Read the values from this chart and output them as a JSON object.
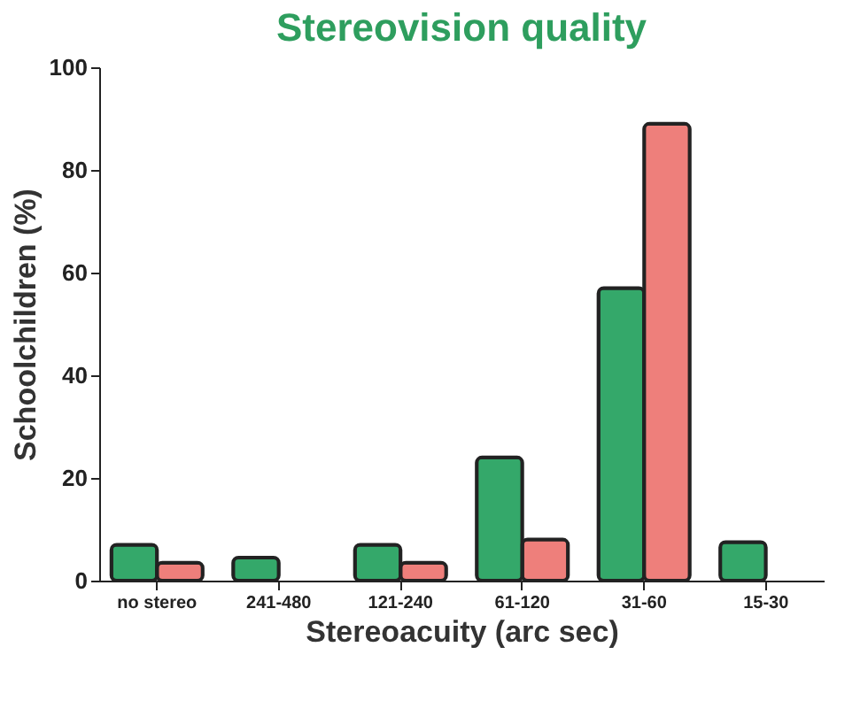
{
  "chart_data": {
    "type": "bar",
    "title": "Stereovision quality",
    "xlabel": "Stereoacuity (arc sec)",
    "ylabel": "Schoolchildren (%)",
    "categories": [
      "no stereo",
      "241-480",
      "121-240",
      "61-120",
      "31-60",
      "15-30"
    ],
    "series": [
      {
        "color": "#34a86a",
        "values": [
          7,
          4.5,
          7,
          24,
          57,
          7.5
        ]
      },
      {
        "color": "#ee7f7b",
        "values": [
          3.5,
          null,
          3.5,
          8,
          89,
          null
        ]
      }
    ],
    "ylim": [
      0,
      100
    ],
    "yticks": [
      0,
      20,
      40,
      60,
      80,
      100
    ],
    "grid": false
  }
}
